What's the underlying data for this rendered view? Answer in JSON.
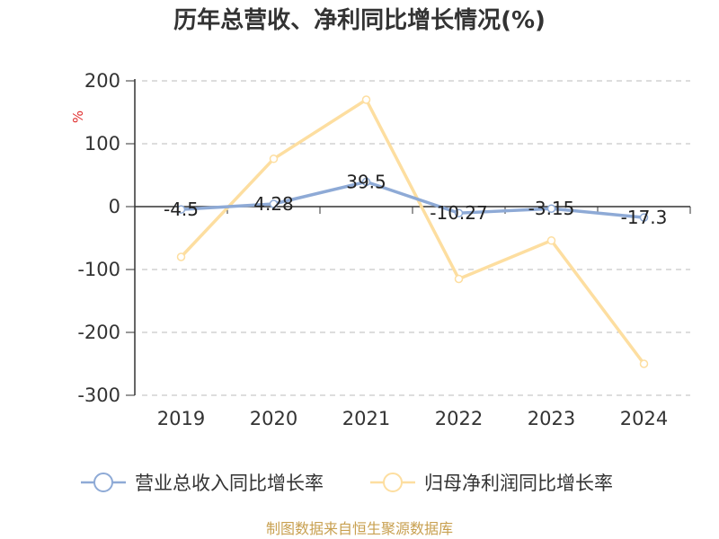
{
  "title": "历年总营收、净利同比增长情况(%)",
  "source_note": "制图数据来自恒生聚源数据库",
  "chart_data": {
    "type": "line",
    "title": "历年总营收、净利同比增长情况(%)",
    "ylabel": "%",
    "xlabel": "",
    "categories": [
      "2019",
      "2020",
      "2021",
      "2022",
      "2023",
      "2024"
    ],
    "ylim": [
      -300,
      200
    ],
    "yticks": [
      200,
      100,
      0,
      -100,
      -200,
      -300
    ],
    "grid": true,
    "legend_position": "bottom",
    "series": [
      {
        "name": "营业总收入同比增长率",
        "color": "#8eaad6",
        "values": [
          -4.5,
          4.28,
          39.5,
          -10.27,
          -3.15,
          -17.3
        ],
        "labels": [
          "-4.5",
          "4.28",
          "39.5",
          "-10.27",
          "-3.15",
          "-17.3"
        ]
      },
      {
        "name": "归母净利润同比增长率",
        "color": "#fddea0",
        "values": [
          -80,
          76,
          170,
          -115,
          -54,
          -250
        ]
      }
    ]
  }
}
